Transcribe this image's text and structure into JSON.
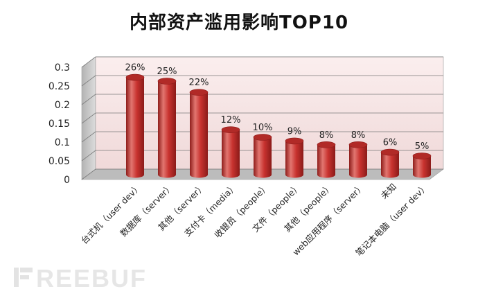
{
  "chart_data": {
    "type": "bar",
    "title": "内部资产滥用影响TOP10",
    "categories": [
      "台式机（user dev）",
      "数据库（server）",
      "其他（server）",
      "支付卡（media）",
      "收银员（people）",
      "文件（people）",
      "其他（people）",
      "web应用程序（server）",
      "未知",
      "笔记本电脑（user dev）"
    ],
    "values": [
      0.26,
      0.25,
      0.22,
      0.12,
      0.1,
      0.09,
      0.08,
      0.08,
      0.06,
      0.05
    ],
    "data_labels": [
      "26%",
      "25%",
      "22%",
      "12%",
      "10%",
      "9%",
      "8%",
      "8%",
      "6%",
      "5%"
    ],
    "ylim": [
      0,
      0.3
    ],
    "yticks": [
      0,
      0.05,
      0.1,
      0.15,
      0.2,
      0.25,
      0.3
    ],
    "ytick_labels": [
      "0",
      "0.05",
      "0.1",
      "0.15",
      "0.2",
      "0.25",
      "0.3"
    ],
    "grid": true,
    "legend": "none",
    "colors": {
      "bar": "#c8322f",
      "bar_dark": "#8e1d1b",
      "bar_light": "#e27670",
      "bar_top": "#b12a27",
      "wall": "#f6e4e4",
      "floor": "#bcbcbc",
      "side_wall": "#c9c9c9",
      "grid": "#7a7a7a"
    }
  },
  "watermark": {
    "text": "FREEBUF"
  }
}
